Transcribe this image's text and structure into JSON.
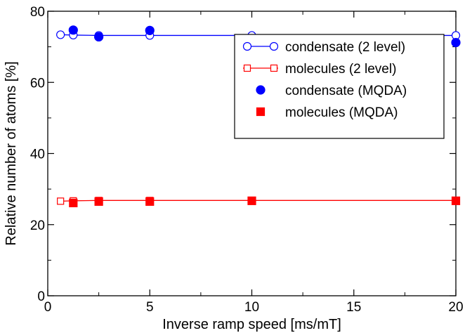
{
  "chart_data": {
    "type": "scatter",
    "title": "",
    "xlabel": "Inverse ramp speed [ms/mT]",
    "ylabel": "Relative number of atoms [%]",
    "xlim": [
      0,
      20
    ],
    "ylim": [
      0,
      80
    ],
    "xticks": [
      0,
      5,
      10,
      15,
      20
    ],
    "yticks": [
      0,
      20,
      40,
      60,
      80
    ],
    "grid": false,
    "legend_position": "top-right",
    "series": [
      {
        "name": "condensate (2 level)",
        "kind": "line-open-circle",
        "color": "#0000ff",
        "x": [
          0.625,
          1.25,
          2.5,
          5,
          10,
          20
        ],
        "y": [
          73.4,
          73.3,
          73.2,
          73.2,
          73.2,
          73.2
        ]
      },
      {
        "name": "molecules (2 level)",
        "kind": "line-open-square",
        "color": "#ff0000",
        "x": [
          0.625,
          1.25,
          2.5,
          5,
          10,
          20
        ],
        "y": [
          26.6,
          26.7,
          26.8,
          26.8,
          26.8,
          26.8
        ]
      },
      {
        "name": "condensate (MQDA)",
        "kind": "filled-circle",
        "color": "#0000ff",
        "x": [
          1.25,
          2.5,
          5,
          10,
          20
        ],
        "y": [
          74.7,
          72.8,
          74.6,
          72.0,
          71.2
        ]
      },
      {
        "name": "molecules (MQDA)",
        "kind": "filled-square",
        "color": "#ff0000",
        "x": [
          1.25,
          2.5,
          5,
          10,
          20
        ],
        "y": [
          26.1,
          26.5,
          26.5,
          26.7,
          26.7
        ]
      }
    ]
  }
}
